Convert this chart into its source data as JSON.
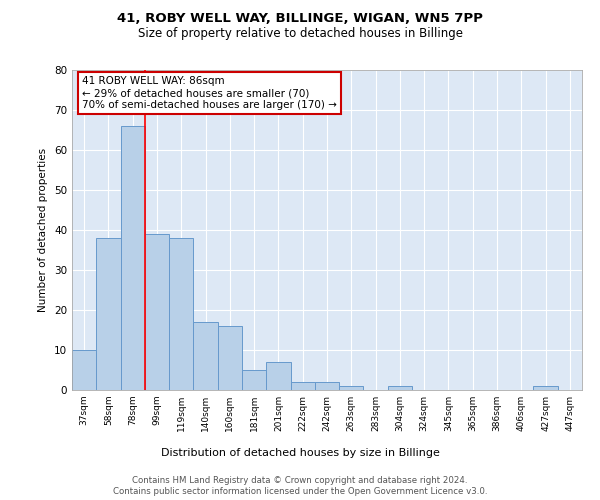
{
  "title1": "41, ROBY WELL WAY, BILLINGE, WIGAN, WN5 7PP",
  "title2": "Size of property relative to detached houses in Billinge",
  "xlabel": "Distribution of detached houses by size in Billinge",
  "ylabel": "Number of detached properties",
  "categories": [
    "37sqm",
    "58sqm",
    "78sqm",
    "99sqm",
    "119sqm",
    "140sqm",
    "160sqm",
    "181sqm",
    "201sqm",
    "222sqm",
    "242sqm",
    "263sqm",
    "283sqm",
    "304sqm",
    "324sqm",
    "345sqm",
    "365sqm",
    "386sqm",
    "406sqm",
    "427sqm",
    "447sqm"
  ],
  "values": [
    10,
    38,
    66,
    39,
    38,
    17,
    16,
    5,
    7,
    2,
    2,
    1,
    0,
    1,
    0,
    0,
    0,
    0,
    0,
    1,
    0
  ],
  "bar_color": "#b8d0e8",
  "bar_edge_color": "#6699cc",
  "redline_index": 2,
  "annotation_text": "41 ROBY WELL WAY: 86sqm\n← 29% of detached houses are smaller (70)\n70% of semi-detached houses are larger (170) →",
  "annotation_box_color": "#ffffff",
  "annotation_box_edge_color": "#cc0000",
  "ylim": [
    0,
    80
  ],
  "yticks": [
    0,
    10,
    20,
    30,
    40,
    50,
    60,
    70,
    80
  ],
  "background_color": "#dde8f5",
  "footer1": "Contains HM Land Registry data © Crown copyright and database right 2024.",
  "footer2": "Contains public sector information licensed under the Open Government Licence v3.0."
}
